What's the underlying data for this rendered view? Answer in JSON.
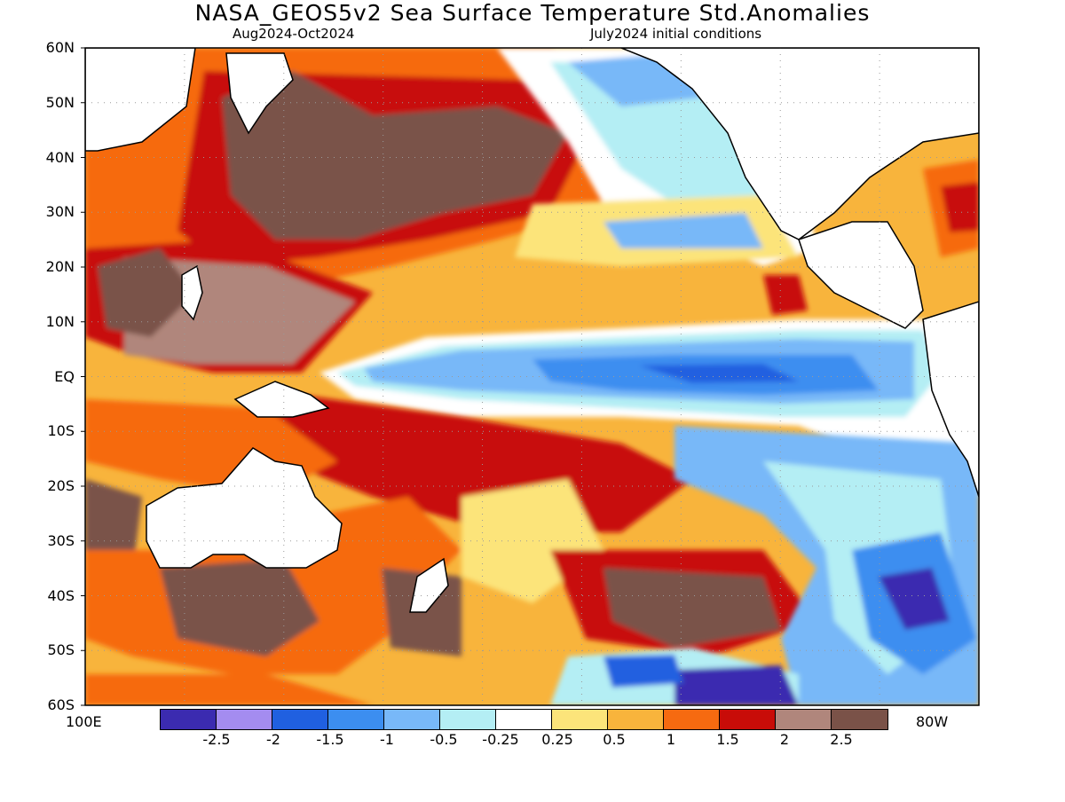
{
  "header": {
    "title": "NASA_GEOS5v2 Sea Surface Temperature Std.Anomalies",
    "subtitle_left": "Aug2024-Oct2024",
    "subtitle_right": "July2024 initial conditions"
  },
  "axes": {
    "lat_labels": [
      "60N",
      "50N",
      "40N",
      "30N",
      "20N",
      "10N",
      "EQ",
      "10S",
      "20S",
      "30S",
      "40S",
      "50S",
      "60S"
    ],
    "lon_left": "100E",
    "lon_right": "80W"
  },
  "colorbar": {
    "colors": [
      "#3b2bb0",
      "#a48cf0",
      "#2060e0",
      "#3c8ef0",
      "#78b8f8",
      "#b4eef4",
      "#ffffff",
      "#fce47a",
      "#f8b43c",
      "#f66a10",
      "#c80c08",
      "#b0867c",
      "#7a5248"
    ],
    "tick_labels": [
      "-2.5",
      "-2",
      "-1.5",
      "-1",
      "-0.5",
      "-0.25",
      "0.25",
      "0.5",
      "1",
      "1.5",
      "2",
      "2.5"
    ]
  },
  "map": {
    "land_color": "#ffffff",
    "grid": "dotted"
  }
}
